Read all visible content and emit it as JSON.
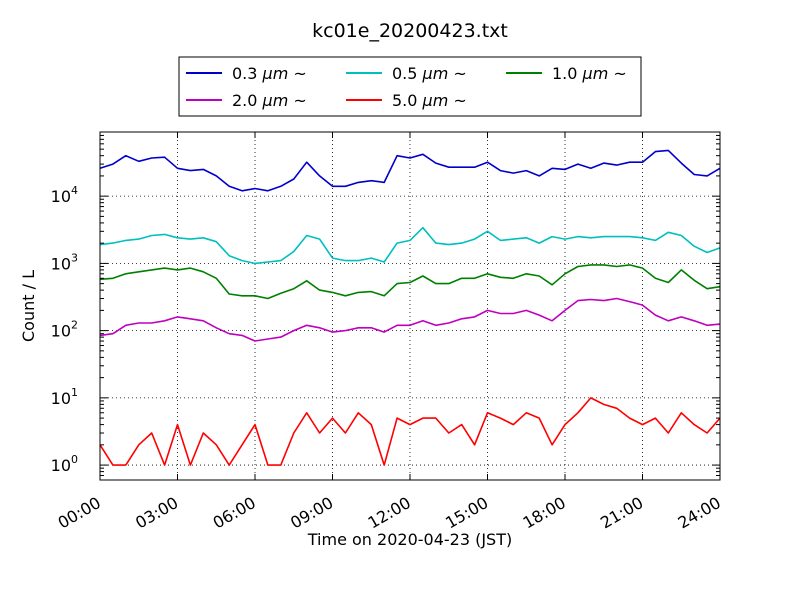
{
  "chart_data": {
    "type": "line",
    "title": "kc01e_20200423.txt",
    "xlabel": "Time on 2020-04-23 (JST)",
    "ylabel": "Count / L",
    "y_scale": "log",
    "ylim": [
      0.6,
      90000
    ],
    "xlim": [
      "00:00",
      "24:00"
    ],
    "x_ticks": [
      "00:00",
      "03:00",
      "06:00",
      "09:00",
      "12:00",
      "15:00",
      "18:00",
      "21:00",
      "24:00"
    ],
    "y_ticks": [
      {
        "value": 1,
        "base": "10",
        "exp": "0"
      },
      {
        "value": 10,
        "base": "10",
        "exp": "1"
      },
      {
        "value": 100,
        "base": "10",
        "exp": "2"
      },
      {
        "value": 1000,
        "base": "10",
        "exp": "3"
      },
      {
        "value": 10000,
        "base": "10",
        "exp": "4"
      }
    ],
    "grid": true,
    "legend_position": "top-center",
    "series": [
      {
        "name": "0.3 μm ~",
        "legend_value": "0.3",
        "legend_unit": "μm",
        "legend_suffix": "~",
        "color": "#0000cc",
        "x": [
          "00:00",
          "00:30",
          "01:00",
          "01:30",
          "02:00",
          "02:30",
          "03:00",
          "03:30",
          "04:00",
          "04:30",
          "05:00",
          "05:30",
          "06:00",
          "06:30",
          "07:00",
          "07:30",
          "08:00",
          "08:30",
          "09:00",
          "09:30",
          "10:00",
          "10:30",
          "11:00",
          "11:30",
          "12:00",
          "12:30",
          "13:00",
          "13:30",
          "14:00",
          "14:30",
          "15:00",
          "15:30",
          "16:00",
          "16:30",
          "17:00",
          "17:30",
          "18:00",
          "18:30",
          "19:00",
          "19:30",
          "20:00",
          "20:30",
          "21:00",
          "21:30",
          "22:00",
          "22:30",
          "23:00",
          "23:30",
          "24:00"
        ],
        "values": [
          26000,
          30000,
          40000,
          33000,
          37000,
          38000,
          26000,
          24000,
          25000,
          20000,
          14000,
          12000,
          13000,
          12000,
          14000,
          18000,
          32000,
          20000,
          14000,
          14000,
          16000,
          17000,
          16000,
          40000,
          37000,
          42000,
          31000,
          27000,
          27000,
          27000,
          32000,
          24000,
          22000,
          24000,
          20000,
          26000,
          25000,
          30000,
          26000,
          31000,
          29000,
          32000,
          32000,
          46000,
          48000,
          31000,
          21000,
          20000,
          26000
        ]
      },
      {
        "name": "0.5 μm ~",
        "legend_value": "0.5",
        "legend_unit": "μm",
        "legend_suffix": "~",
        "color": "#00bfbf",
        "x": [
          "00:00",
          "00:30",
          "01:00",
          "01:30",
          "02:00",
          "02:30",
          "03:00",
          "03:30",
          "04:00",
          "04:30",
          "05:00",
          "05:30",
          "06:00",
          "06:30",
          "07:00",
          "07:30",
          "08:00",
          "08:30",
          "09:00",
          "09:30",
          "10:00",
          "10:30",
          "11:00",
          "11:30",
          "12:00",
          "12:30",
          "13:00",
          "13:30",
          "14:00",
          "14:30",
          "15:00",
          "15:30",
          "16:00",
          "16:30",
          "17:00",
          "17:30",
          "18:00",
          "18:30",
          "19:00",
          "19:30",
          "20:00",
          "20:30",
          "21:00",
          "21:30",
          "22:00",
          "22:30",
          "23:00",
          "23:30",
          "24:00"
        ],
        "values": [
          1900,
          2000,
          2200,
          2300,
          2600,
          2700,
          2400,
          2300,
          2400,
          2100,
          1300,
          1100,
          1000,
          1050,
          1100,
          1500,
          2600,
          2300,
          1200,
          1100,
          1100,
          1200,
          1050,
          2000,
          2200,
          3400,
          2000,
          1900,
          2000,
          2300,
          3000,
          2200,
          2300,
          2400,
          2000,
          2500,
          2300,
          2500,
          2400,
          2500,
          2500,
          2500,
          2400,
          2200,
          2900,
          2600,
          1800,
          1450,
          1700
        ]
      },
      {
        "name": "1.0 μm ~",
        "legend_value": "1.0",
        "legend_unit": "μm",
        "legend_suffix": "~",
        "color": "#008000",
        "x": [
          "00:00",
          "00:30",
          "01:00",
          "01:30",
          "02:00",
          "02:30",
          "03:00",
          "03:30",
          "04:00",
          "04:30",
          "05:00",
          "05:30",
          "06:00",
          "06:30",
          "07:00",
          "07:30",
          "08:00",
          "08:30",
          "09:00",
          "09:30",
          "10:00",
          "10:30",
          "11:00",
          "11:30",
          "12:00",
          "12:30",
          "13:00",
          "13:30",
          "14:00",
          "14:30",
          "15:00",
          "15:30",
          "16:00",
          "16:30",
          "17:00",
          "17:30",
          "18:00",
          "18:30",
          "19:00",
          "19:30",
          "20:00",
          "20:30",
          "21:00",
          "21:30",
          "22:00",
          "22:30",
          "23:00",
          "23:30",
          "24:00"
        ],
        "values": [
          580,
          600,
          700,
          750,
          800,
          850,
          800,
          850,
          750,
          600,
          350,
          330,
          330,
          300,
          360,
          420,
          550,
          400,
          370,
          330,
          370,
          380,
          330,
          500,
          520,
          650,
          500,
          500,
          600,
          600,
          700,
          620,
          600,
          700,
          650,
          480,
          700,
          900,
          950,
          950,
          900,
          950,
          850,
          600,
          520,
          800,
          560,
          420,
          450
        ]
      },
      {
        "name": "2.0 μm ~",
        "legend_value": "2.0",
        "legend_unit": "μm",
        "legend_suffix": "~",
        "color": "#bf00bf",
        "x": [
          "00:00",
          "00:30",
          "01:00",
          "01:30",
          "02:00",
          "02:30",
          "03:00",
          "03:30",
          "04:00",
          "04:30",
          "05:00",
          "05:30",
          "06:00",
          "06:30",
          "07:00",
          "07:30",
          "08:00",
          "08:30",
          "09:00",
          "09:30",
          "10:00",
          "10:30",
          "11:00",
          "11:30",
          "12:00",
          "12:30",
          "13:00",
          "13:30",
          "14:00",
          "14:30",
          "15:00",
          "15:30",
          "16:00",
          "16:30",
          "17:00",
          "17:30",
          "18:00",
          "18:30",
          "19:00",
          "19:30",
          "20:00",
          "20:30",
          "21:00",
          "21:30",
          "22:00",
          "22:30",
          "23:00",
          "23:30",
          "24:00"
        ],
        "values": [
          85,
          90,
          120,
          130,
          130,
          140,
          160,
          150,
          140,
          110,
          90,
          85,
          70,
          75,
          80,
          100,
          120,
          110,
          95,
          100,
          110,
          110,
          95,
          120,
          120,
          140,
          120,
          130,
          150,
          160,
          200,
          180,
          180,
          200,
          170,
          140,
          200,
          280,
          290,
          280,
          300,
          270,
          240,
          170,
          140,
          160,
          140,
          120,
          125
        ]
      },
      {
        "name": "5.0 μm ~",
        "legend_value": "5.0",
        "legend_unit": "μm",
        "legend_suffix": "~",
        "color": "#ff0000",
        "x": [
          "00:00",
          "00:30",
          "01:00",
          "01:30",
          "02:00",
          "02:30",
          "03:00",
          "03:30",
          "04:00",
          "04:30",
          "05:00",
          "05:30",
          "06:00",
          "06:30",
          "07:00",
          "07:30",
          "08:00",
          "08:30",
          "09:00",
          "09:30",
          "10:00",
          "10:30",
          "11:00",
          "11:30",
          "12:00",
          "12:30",
          "13:00",
          "13:30",
          "14:00",
          "14:30",
          "15:00",
          "15:30",
          "16:00",
          "16:30",
          "17:00",
          "17:30",
          "18:00",
          "18:30",
          "19:00",
          "19:30",
          "20:00",
          "20:30",
          "21:00",
          "21:30",
          "22:00",
          "22:30",
          "23:00",
          "23:30",
          "24:00"
        ],
        "values": [
          2,
          1,
          1,
          2,
          3,
          1,
          4,
          1,
          3,
          2,
          1,
          2,
          4,
          1,
          1,
          3,
          6,
          3,
          5,
          3,
          6,
          4,
          1,
          5,
          4,
          5,
          5,
          3,
          4,
          2,
          6,
          5,
          4,
          6,
          5,
          2,
          4,
          6,
          10,
          8,
          7,
          5,
          4,
          5,
          3,
          6,
          4,
          3,
          5
        ]
      }
    ]
  }
}
